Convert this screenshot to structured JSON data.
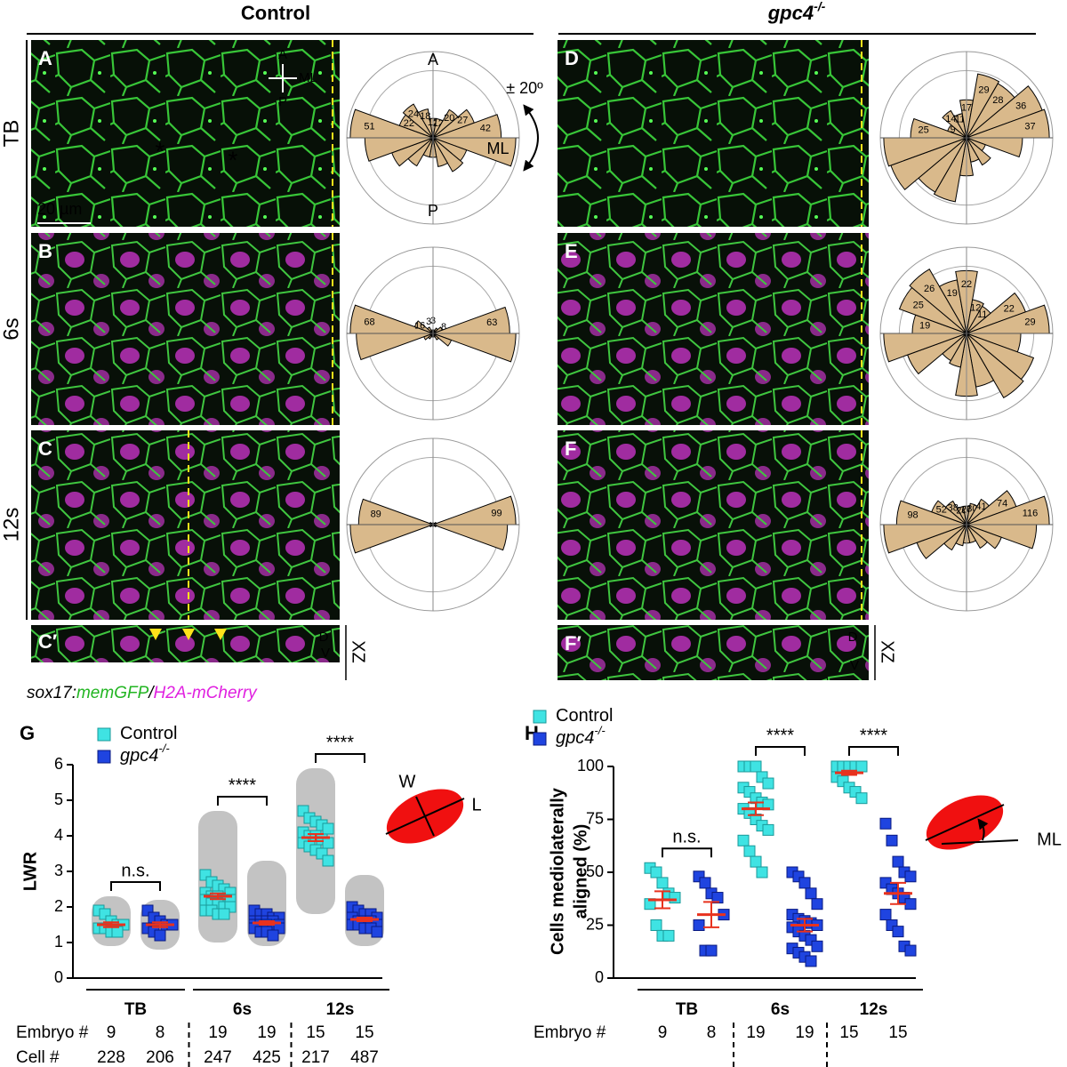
{
  "figure": {
    "control_header": "Control",
    "mutant_header": "gpc4",
    "mutant_sup": "-/-",
    "row_labels": [
      "TB",
      "6s",
      "12s"
    ],
    "panel_labels": [
      "A",
      "B",
      "C",
      "C′",
      "D",
      "E",
      "F",
      "F′"
    ],
    "xz": "XZ",
    "dorsal": "D",
    "ventral": "V",
    "axis_a": "A",
    "axis_ml": "ML",
    "axis_p": "P",
    "scale_bar": "20 µm",
    "asterisk": "*",
    "caption": [
      "sox17:",
      "memGFP",
      "/",
      "H2A-mCherry"
    ]
  },
  "roses": {
    "top": "A",
    "right": "ML",
    "bottom": "P",
    "range": "± 20º",
    "items": [
      {
        "petals": [
          {
            "value": 51,
            "label": "51"
          },
          {
            "value": 22,
            "label": "22"
          },
          {
            "value": 24,
            "label": "24"
          },
          {
            "value": 18,
            "label": "18"
          },
          {
            "value": 12,
            "label": "12"
          },
          {
            "value": 12,
            "label": "12"
          },
          {
            "value": 20,
            "label": "20"
          },
          {
            "value": 27,
            "label": "27"
          },
          {
            "value": 42,
            "label": "42"
          }
        ]
      },
      {
        "petals": [
          {
            "value": 68,
            "label": "68"
          },
          {
            "value": 16,
            "label": "16"
          },
          6,
          {
            "value": 3,
            "label": "3"
          },
          {
            "value": 3,
            "label": "3"
          },
          3,
          5,
          {
            "value": 8,
            "label": "8"
          },
          {
            "value": 63,
            "label": "63"
          }
        ]
      },
      {
        "petals": [
          {
            "value": 89,
            "label": "89"
          },
          4,
          2,
          2,
          2,
          2,
          2,
          4,
          {
            "value": 99,
            "label": "99"
          }
        ]
      },
      {
        "petals": [
          {
            "value": 25,
            "label": "25"
          },
          {
            "value": 9,
            "label": "9"
          },
          {
            "value": 14,
            "label": "14"
          },
          {
            "value": 11,
            "label": "11"
          },
          {
            "value": 17,
            "label": "17"
          },
          {
            "value": 29,
            "label": "29"
          },
          {
            "value": 28,
            "label": "28"
          },
          {
            "value": 36,
            "label": "36"
          },
          {
            "value": 37,
            "label": "37"
          }
        ]
      },
      {
        "petals": [
          {
            "value": 19,
            "label": "19"
          },
          {
            "value": 25,
            "label": "25"
          },
          {
            "value": 26,
            "label": "26"
          },
          {
            "value": 19,
            "label": "19"
          },
          {
            "value": 22,
            "label": "22"
          },
          {
            "value": 12,
            "label": "12"
          },
          {
            "value": 11,
            "label": "11"
          },
          {
            "value": 22,
            "label": "22"
          },
          {
            "value": 29,
            "label": "29"
          }
        ]
      },
      {
        "petals": [
          {
            "value": 98,
            "label": "98"
          },
          {
            "value": 52,
            "label": "52"
          },
          {
            "value": 38,
            "label": "38"
          },
          {
            "value": 26,
            "label": "26"
          },
          {
            "value": 26,
            "label": "26"
          },
          {
            "value": 30,
            "label": "30"
          },
          {
            "value": 41,
            "label": "41"
          },
          {
            "value": 74,
            "label": "74"
          },
          {
            "value": 116,
            "label": "116"
          }
        ]
      }
    ]
  },
  "chart_data": [
    {
      "type": "scatter",
      "panel": "G",
      "ylabel": [
        "LWR"
      ],
      "ylim": [
        0,
        6
      ],
      "yticks": [
        0,
        1,
        2,
        3,
        4,
        5,
        6
      ],
      "stages": [
        "TB",
        "6s",
        "12s"
      ],
      "significance": [
        "n.s.",
        "****",
        "****"
      ],
      "series": [
        {
          "name": "Control",
          "color": "#3fe3e3",
          "values": [
            [
              1.9,
              1.8,
              1.6,
              1.5,
              1.5,
              1.4,
              1.4,
              1.3,
              1.3
            ],
            [
              2.9,
              2.7,
              2.6,
              2.5,
              2.4,
              2.4,
              2.3,
              2.3,
              2.2,
              2.2,
              2.2,
              2.1,
              2.1,
              2.0,
              2.0,
              1.9,
              1.9,
              1.8,
              1.8
            ],
            [
              4.7,
              4.5,
              4.4,
              4.3,
              4.2,
              4.1,
              4.0,
              4.0,
              3.9,
              3.8,
              3.8,
              3.7,
              3.6,
              3.5,
              3.3
            ]
          ],
          "means": [
            1.5,
            2.3,
            3.95
          ],
          "sems": [
            0.07,
            0.08,
            0.1
          ],
          "cell_ranges": [
            [
              0.9,
              2.3
            ],
            [
              1.0,
              4.7
            ],
            [
              1.8,
              5.9
            ]
          ]
        },
        {
          "name": "gpc4",
          "name_sup": "-/-",
          "color": "#1f44e0",
          "values": [
            [
              1.9,
              1.7,
              1.6,
              1.5,
              1.5,
              1.4,
              1.3,
              1.2
            ],
            [
              1.9,
              1.8,
              1.8,
              1.7,
              1.7,
              1.6,
              1.6,
              1.6,
              1.6,
              1.5,
              1.5,
              1.5,
              1.5,
              1.4,
              1.4,
              1.4,
              1.3,
              1.3,
              1.2
            ],
            [
              2.0,
              1.9,
              1.8,
              1.8,
              1.7,
              1.7,
              1.6,
              1.6,
              1.6,
              1.5,
              1.5,
              1.5,
              1.4,
              1.4,
              1.3
            ]
          ],
          "means": [
            1.5,
            1.55,
            1.65
          ],
          "sems": [
            0.07,
            0.05,
            0.05
          ],
          "cell_ranges": [
            [
              0.8,
              2.2
            ],
            [
              0.9,
              3.3
            ],
            [
              0.9,
              2.9
            ]
          ]
        }
      ],
      "table": [
        {
          "label": "Embryo #",
          "values": [
            9,
            8,
            19,
            19,
            15,
            15
          ]
        },
        {
          "label": "Cell #",
          "values": [
            228,
            206,
            247,
            425,
            217,
            487
          ]
        }
      ],
      "schematic": [
        "W",
        "L"
      ]
    },
    {
      "type": "scatter",
      "panel": "H",
      "ylabel": [
        "Cells mediolaterally",
        "aligned (%)"
      ],
      "ylim": [
        0,
        100
      ],
      "yticks": [
        0,
        25,
        50,
        75,
        100
      ],
      "stages": [
        "TB",
        "6s",
        "12s"
      ],
      "significance": [
        "n.s.",
        "****",
        "****"
      ],
      "series": [
        {
          "name": "Control",
          "color": "#3fe3e3",
          "values": [
            [
              52,
              50,
              45,
              40,
              38,
              35,
              25,
              20,
              20
            ],
            [
              100,
              100,
              100,
              95,
              92,
              90,
              88,
              85,
              83,
              82,
              80,
              78,
              75,
              72,
              70,
              65,
              60,
              55,
              50
            ],
            [
              100,
              100,
              100,
              100,
              100,
              100,
              100,
              100,
              100,
              100,
              95,
              93,
              90,
              88,
              85
            ]
          ],
          "means": [
            37,
            80,
            97
          ],
          "sems": [
            4,
            3,
            1
          ]
        },
        {
          "name": "gpc4",
          "name_sup": "-/-",
          "color": "#1f44e0",
          "values": [
            [
              48,
              45,
              40,
              38,
              30,
              25,
              13,
              13
            ],
            [
              50,
              48,
              45,
              40,
              35,
              30,
              28,
              27,
              26,
              25,
              24,
              22,
              20,
              18,
              15,
              14,
              12,
              10,
              8
            ],
            [
              73,
              65,
              55,
              50,
              48,
              45,
              42,
              40,
              38,
              35,
              30,
              25,
              22,
              15,
              13
            ]
          ],
          "means": [
            30,
            25,
            40
          ],
          "sems": [
            6,
            3,
            5
          ]
        }
      ],
      "table": [
        {
          "label": "Embryo #",
          "values": [
            9,
            8,
            19,
            19,
            15,
            15
          ]
        }
      ],
      "schematic": [
        "ML"
      ]
    }
  ]
}
